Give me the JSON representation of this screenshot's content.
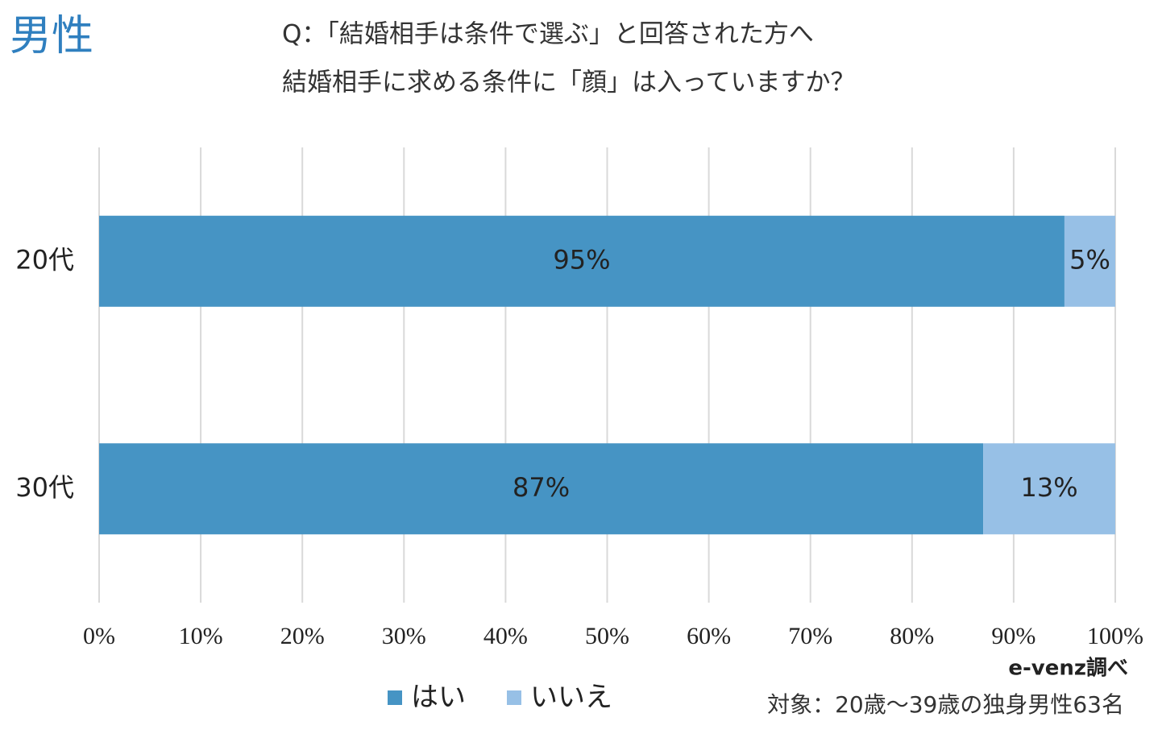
{
  "chart_data": {
    "type": "stacked-bar-horizontal",
    "label": "男性",
    "title": [
      "Q：「結婚相手は条件で選ぶ」と回答された方へ",
      "結婚相手に求める条件に「顔」は入っていますか？"
    ],
    "categories": [
      "20代",
      "30代"
    ],
    "series": [
      {
        "name": "はい",
        "color": "#4694c4",
        "values": [
          95,
          87
        ],
        "value_labels": [
          "95%",
          "87%"
        ]
      },
      {
        "name": "いいえ",
        "color": "#97c0e6",
        "values": [
          5,
          13
        ],
        "value_labels": [
          "5%",
          "13%"
        ]
      }
    ],
    "xlim": [
      0,
      100
    ],
    "xticks": [
      {
        "value": 0,
        "label": "0%"
      },
      {
        "value": 10,
        "label": "10%"
      },
      {
        "value": 20,
        "label": "20%"
      },
      {
        "value": 30,
        "label": "30%"
      },
      {
        "value": 40,
        "label": "40%"
      },
      {
        "value": 50,
        "label": "50%"
      },
      {
        "value": 60,
        "label": "60%"
      },
      {
        "value": 70,
        "label": "70%"
      },
      {
        "value": 80,
        "label": "80%"
      },
      {
        "value": 90,
        "label": "90%"
      },
      {
        "value": 100,
        "label": "100%"
      }
    ],
    "grid": true,
    "legend": "bottom",
    "source": "e-venz調べ",
    "note": "対象：20歳～39歳の独身男性63名"
  }
}
